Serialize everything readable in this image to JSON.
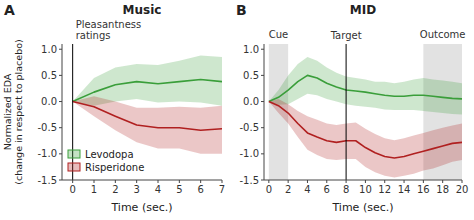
{
  "chart_data": [
    {
      "type": "line",
      "panel_label": "A",
      "title": "Music",
      "xlabel": "Time (sec.)",
      "ylabel": "Normalized EDA\n(change in respect to placebo)",
      "x": [
        0,
        1,
        2,
        3,
        4,
        5,
        6,
        7
      ],
      "xlim": [
        -0.5,
        7
      ],
      "xticks": [
        0,
        1,
        2,
        3,
        4,
        5,
        6,
        7
      ],
      "ylim": [
        -1.5,
        1.1
      ],
      "yticks": [
        -1.5,
        {
          "value": -1,
          "label": "-1.0"
        },
        -0.5,
        {
          "value": 0,
          "label": "0.0"
        },
        0.5,
        {
          "value": 1,
          "label": "1.0"
        }
      ],
      "vline": {
        "x": 0,
        "labels": [
          "Pleasantness",
          "ratings"
        ]
      },
      "legend": "lower left",
      "series": [
        {
          "name": "Levodopa",
          "color": "#3a9e3a",
          "values": [
            0.0,
            0.18,
            0.32,
            0.38,
            0.34,
            0.38,
            0.42,
            0.38
          ],
          "upper": [
            0.0,
            0.45,
            0.65,
            0.72,
            0.7,
            0.78,
            0.88,
            0.85
          ],
          "lower": [
            0.0,
            -0.08,
            0.0,
            0.05,
            -0.02,
            0.0,
            -0.02,
            -0.08
          ]
        },
        {
          "name": "Risperidone",
          "color": "#b02020",
          "values": [
            0.0,
            -0.1,
            -0.28,
            -0.45,
            -0.5,
            -0.5,
            -0.55,
            -0.52
          ],
          "upper": [
            0.0,
            0.1,
            0.0,
            -0.12,
            -0.12,
            -0.1,
            -0.12,
            -0.08
          ],
          "lower": [
            0.0,
            -0.28,
            -0.55,
            -0.78,
            -0.9,
            -0.9,
            -1.0,
            -1.0
          ]
        }
      ]
    },
    {
      "type": "line",
      "panel_label": "B",
      "title": "MID",
      "xlabel": "Time (sec.)",
      "x": [
        0,
        1,
        2,
        3,
        4,
        5,
        6,
        7,
        8,
        9,
        10,
        11,
        12,
        13,
        14,
        15,
        16,
        17,
        18,
        19,
        20
      ],
      "xlim": [
        -0.5,
        20
      ],
      "xticks": [
        0,
        2,
        4,
        6,
        8,
        10,
        12,
        14,
        16,
        18,
        20
      ],
      "ylim": [
        -1.5,
        1.1
      ],
      "yticks": [
        -1.5,
        {
          "value": -1,
          "label": "-1.0"
        },
        -0.5,
        {
          "value": 0,
          "label": "0.0"
        },
        0.5,
        {
          "value": 1,
          "label": "1.0"
        }
      ],
      "vline": {
        "x": 8,
        "labels": [
          "Target"
        ]
      },
      "shaded_regions": [
        {
          "x0": 0,
          "x1": 2,
          "label": "Cue"
        },
        {
          "x0": 16,
          "x1": 20,
          "label": "Outcome"
        }
      ],
      "series": [
        {
          "color": "#3a9e3a",
          "values": [
            0.0,
            0.08,
            0.22,
            0.38,
            0.5,
            0.45,
            0.35,
            0.28,
            0.22,
            0.2,
            0.18,
            0.15,
            0.12,
            0.1,
            0.1,
            0.12,
            0.12,
            0.1,
            0.08,
            0.06,
            0.05
          ],
          "upper": [
            0.0,
            0.22,
            0.5,
            0.72,
            0.85,
            0.78,
            0.65,
            0.55,
            0.48,
            0.45,
            0.42,
            0.38,
            0.38,
            0.35,
            0.38,
            0.42,
            0.45,
            0.42,
            0.4,
            0.38,
            0.35
          ],
          "lower": [
            0.0,
            -0.06,
            -0.05,
            0.05,
            0.15,
            0.12,
            0.05,
            0.0,
            -0.05,
            -0.08,
            -0.1,
            -0.12,
            -0.15,
            -0.16,
            -0.16,
            -0.16,
            -0.18,
            -0.2,
            -0.22,
            -0.24,
            -0.25
          ]
        },
        {
          "color": "#b02020",
          "values": [
            0.0,
            -0.08,
            -0.22,
            -0.42,
            -0.6,
            -0.68,
            -0.75,
            -0.78,
            -0.75,
            -0.75,
            -0.88,
            -0.98,
            -1.05,
            -1.08,
            -1.05,
            -1.0,
            -0.95,
            -0.9,
            -0.85,
            -0.8,
            -0.78
          ],
          "upper": [
            0.0,
            0.05,
            -0.05,
            -0.18,
            -0.28,
            -0.35,
            -0.42,
            -0.45,
            -0.42,
            -0.4,
            -0.52,
            -0.62,
            -0.7,
            -0.74,
            -0.7,
            -0.65,
            -0.6,
            -0.55,
            -0.5,
            -0.46,
            -0.42
          ],
          "lower": [
            0.0,
            -0.22,
            -0.42,
            -0.68,
            -0.92,
            -1.02,
            -1.1,
            -1.12,
            -1.1,
            -1.1,
            -1.25,
            -1.35,
            -1.42,
            -1.45,
            -1.42,
            -1.38,
            -1.32,
            -1.28,
            -1.22,
            -1.15,
            -1.12
          ]
        }
      ]
    }
  ]
}
